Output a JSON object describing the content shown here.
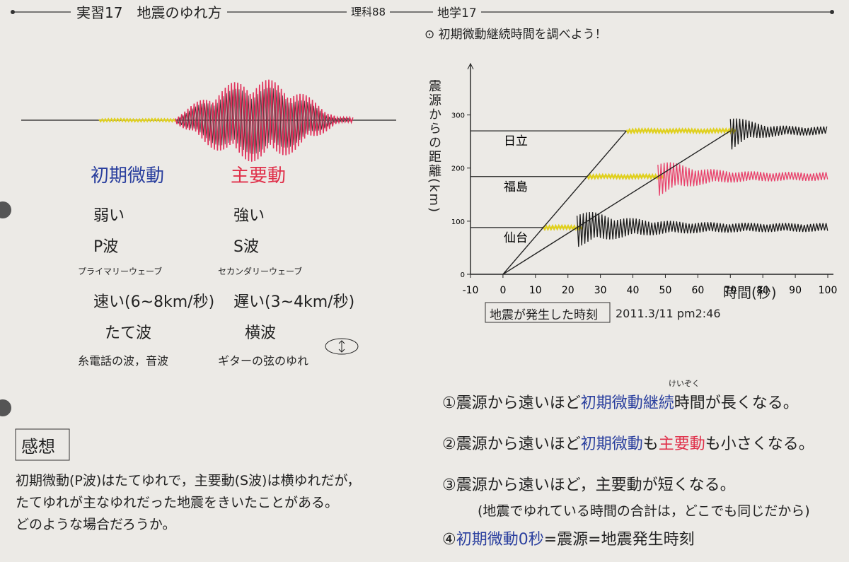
{
  "header": {
    "title": "実習17　地震のゆれ方",
    "class": "理科88",
    "subject": "地学17"
  },
  "wave_diagram": {
    "columns": [
      {
        "heading": "初期微動",
        "color": "#2a3f9e",
        "items": [
          "弱い",
          "P波",
          "プライマリーウェーブ",
          "速い(6~8km/秒)",
          "たて波",
          "糸電話の波，音波"
        ]
      },
      {
        "heading": "主要動",
        "color": "#e0304a",
        "items": [
          "強い",
          "S波",
          "セカンダリーウェーブ",
          "遅い(3~4km/秒)",
          "横波",
          "ギターの弦のゆれ"
        ]
      }
    ]
  },
  "chart_data": {
    "type": "line",
    "title": "⊙ 初期微動継続時間を調べよう！",
    "y_label": "震源からの距離(km)",
    "x_label": "時間(秒)",
    "xlim": [
      -10,
      100
    ],
    "ylim": [
      0,
      390
    ],
    "xticks": [
      -10,
      0,
      10,
      20,
      30,
      40,
      50,
      60,
      70,
      80,
      90,
      100
    ],
    "yticks": [
      0,
      100,
      200,
      300
    ],
    "series": [
      {
        "color": "#222222",
        "x": [
          0,
          38
        ],
        "values": [
          0,
          270
        ]
      },
      {
        "color": "#222222",
        "x": [
          0,
          70
        ],
        "values": [
          0,
          270
        ]
      }
    ],
    "stations": [
      {
        "name": "日立",
        "distance": 270,
        "wave_color": "#1a1a1a"
      },
      {
        "name": "福島",
        "distance": 184,
        "wave_color": "#e8406a"
      },
      {
        "name": "仙台",
        "distance": 88,
        "wave_color": "#1a1a1a"
      }
    ],
    "annotations": [
      "地震が発生した時刻",
      "2011.3/11 pm2:46"
    ]
  },
  "impressions": {
    "title": "感想",
    "lines": [
      "初期微動(P波)はたてゆれで，主要動(S波)は横ゆれだが，",
      "たてゆれが主なゆれだった地震をきいたことがある。",
      "どのような場合だろうか。"
    ]
  },
  "conclusions": [
    {
      "furigana": "けいぞく",
      "parts": [
        {
          "text": "①震源から遠いほど",
          "color": "#222222"
        },
        {
          "text": "初期微動継続",
          "color": "#2a3f9e"
        },
        {
          "text": "時間が長くなる。",
          "color": "#222222"
        }
      ]
    },
    {
      "parts": [
        {
          "text": "②震源から遠いほど",
          "color": "#222222"
        },
        {
          "text": "初期微動",
          "color": "#2a3f9e"
        },
        {
          "text": "も",
          "color": "#222222"
        },
        {
          "text": "主要動",
          "color": "#e0304a"
        },
        {
          "text": "も小さくなる。",
          "color": "#222222"
        }
      ]
    },
    {
      "parts": [
        {
          "text": "③震源から遠いほど，主要動が短くなる。",
          "color": "#222222"
        }
      ],
      "note": "(地震でゆれている時間の合計は，どこでも同じだから)"
    },
    {
      "parts": [
        {
          "text": "④",
          "color": "#222222"
        },
        {
          "text": "初期微動0秒",
          "color": "#2a3f9e"
        },
        {
          "text": "=震源=地震発生時刻",
          "color": "#222222"
        }
      ]
    }
  ]
}
